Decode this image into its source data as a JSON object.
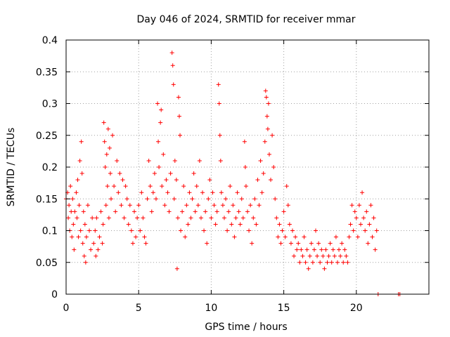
{
  "chart_data": {
    "type": "scatter",
    "title": "Day 046 of 2024, SRMTID for receiver mmar",
    "xlabel": "GPS time / hours",
    "ylabel": "SRMTID / TECUs",
    "xlim": [
      0,
      25
    ],
    "ylim": [
      0,
      0.4
    ],
    "xticks": [
      0,
      5,
      10,
      15,
      20
    ],
    "xtick_labels": [
      "0",
      "5",
      "10",
      "15",
      "20"
    ],
    "yticks": [
      0,
      0.05,
      0.1,
      0.15,
      0.2,
      0.25,
      0.3,
      0.35,
      0.4
    ],
    "ytick_labels": [
      "0",
      "0.05",
      "0.1",
      "0.15",
      "0.2",
      "0.25",
      "0.3",
      "0.35",
      "0.4"
    ],
    "grid": true,
    "marker": "plus",
    "color": "#ff0000",
    "series": [
      {
        "name": "SRMTID",
        "points": [
          [
            0.0,
            0.15
          ],
          [
            0.1,
            0.16
          ],
          [
            0.15,
            0.12
          ],
          [
            0.2,
            0.14
          ],
          [
            0.25,
            0.1
          ],
          [
            0.3,
            0.17
          ],
          [
            0.35,
            0.13
          ],
          [
            0.4,
            0.09
          ],
          [
            0.45,
            0.15
          ],
          [
            0.5,
            0.11
          ],
          [
            0.55,
            0.07
          ],
          [
            0.6,
            0.13
          ],
          [
            0.7,
            0.16
          ],
          [
            0.75,
            0.12
          ],
          [
            0.8,
            0.18
          ],
          [
            0.85,
            0.09
          ],
          [
            0.9,
            0.14
          ],
          [
            0.95,
            0.21
          ],
          [
            1.0,
            0.1
          ],
          [
            1.05,
            0.24
          ],
          [
            1.1,
            0.19
          ],
          [
            1.15,
            0.08
          ],
          [
            1.2,
            0.13
          ],
          [
            1.25,
            0.06
          ],
          [
            1.3,
            0.11
          ],
          [
            1.35,
            0.05
          ],
          [
            1.4,
            0.09
          ],
          [
            1.5,
            0.14
          ],
          [
            1.6,
            0.1
          ],
          [
            1.7,
            0.07
          ],
          [
            1.8,
            0.12
          ],
          [
            1.9,
            0.08
          ],
          [
            2.0,
            0.1
          ],
          [
            2.05,
            0.06
          ],
          [
            2.1,
            0.12
          ],
          [
            2.2,
            0.07
          ],
          [
            2.3,
            0.09
          ],
          [
            2.4,
            0.13
          ],
          [
            2.5,
            0.08
          ],
          [
            2.55,
            0.11
          ],
          [
            2.6,
            0.27
          ],
          [
            2.65,
            0.24
          ],
          [
            2.7,
            0.2
          ],
          [
            2.75,
            0.14
          ],
          [
            2.8,
            0.22
          ],
          [
            2.85,
            0.17
          ],
          [
            2.9,
            0.26
          ],
          [
            2.95,
            0.12
          ],
          [
            3.0,
            0.23
          ],
          [
            3.05,
            0.19
          ],
          [
            3.1,
            0.15
          ],
          [
            3.2,
            0.25
          ],
          [
            3.3,
            0.17
          ],
          [
            3.4,
            0.13
          ],
          [
            3.5,
            0.21
          ],
          [
            3.6,
            0.16
          ],
          [
            3.7,
            0.19
          ],
          [
            3.8,
            0.14
          ],
          [
            3.9,
            0.18
          ],
          [
            4.0,
            0.12
          ],
          [
            4.1,
            0.17
          ],
          [
            4.2,
            0.15
          ],
          [
            4.3,
            0.11
          ],
          [
            4.4,
            0.14
          ],
          [
            4.5,
            0.1
          ],
          [
            4.6,
            0.08
          ],
          [
            4.7,
            0.13
          ],
          [
            4.8,
            0.09
          ],
          [
            4.9,
            0.12
          ],
          [
            5.0,
            0.14
          ],
          [
            5.1,
            0.1
          ],
          [
            5.2,
            0.16
          ],
          [
            5.3,
            0.12
          ],
          [
            5.4,
            0.09
          ],
          [
            5.5,
            0.08
          ],
          [
            5.6,
            0.15
          ],
          [
            5.7,
            0.21
          ],
          [
            5.8,
            0.17
          ],
          [
            5.9,
            0.13
          ],
          [
            6.0,
            0.16
          ],
          [
            6.1,
            0.19
          ],
          [
            6.2,
            0.15
          ],
          [
            6.3,
            0.3
          ],
          [
            6.35,
            0.24
          ],
          [
            6.4,
            0.2
          ],
          [
            6.5,
            0.27
          ],
          [
            6.55,
            0.29
          ],
          [
            6.6,
            0.17
          ],
          [
            6.7,
            0.22
          ],
          [
            6.8,
            0.14
          ],
          [
            6.9,
            0.18
          ],
          [
            7.0,
            0.16
          ],
          [
            7.1,
            0.13
          ],
          [
            7.2,
            0.19
          ],
          [
            7.3,
            0.38
          ],
          [
            7.35,
            0.36
          ],
          [
            7.4,
            0.33
          ],
          [
            7.45,
            0.15
          ],
          [
            7.5,
            0.21
          ],
          [
            7.6,
            0.18
          ],
          [
            7.65,
            0.04
          ],
          [
            7.7,
            0.12
          ],
          [
            7.75,
            0.31
          ],
          [
            7.8,
            0.28
          ],
          [
            7.85,
            0.25
          ],
          [
            7.9,
            0.1
          ],
          [
            8.0,
            0.13
          ],
          [
            8.1,
            0.17
          ],
          [
            8.2,
            0.09
          ],
          [
            8.3,
            0.14
          ],
          [
            8.4,
            0.11
          ],
          [
            8.5,
            0.16
          ],
          [
            8.6,
            0.12
          ],
          [
            8.7,
            0.15
          ],
          [
            8.8,
            0.19
          ],
          [
            8.9,
            0.13
          ],
          [
            9.0,
            0.17
          ],
          [
            9.1,
            0.14
          ],
          [
            9.2,
            0.21
          ],
          [
            9.3,
            0.12
          ],
          [
            9.4,
            0.16
          ],
          [
            9.5,
            0.1
          ],
          [
            9.6,
            0.13
          ],
          [
            9.7,
            0.08
          ],
          [
            9.8,
            0.15
          ],
          [
            9.9,
            0.18
          ],
          [
            10.0,
            0.12
          ],
          [
            10.1,
            0.16
          ],
          [
            10.2,
            0.14
          ],
          [
            10.3,
            0.11
          ],
          [
            10.4,
            0.13
          ],
          [
            10.5,
            0.33
          ],
          [
            10.55,
            0.3
          ],
          [
            10.6,
            0.25
          ],
          [
            10.65,
            0.21
          ],
          [
            10.7,
            0.16
          ],
          [
            10.8,
            0.14
          ],
          [
            10.9,
            0.12
          ],
          [
            11.0,
            0.15
          ],
          [
            11.1,
            0.1
          ],
          [
            11.2,
            0.13
          ],
          [
            11.3,
            0.17
          ],
          [
            11.4,
            0.11
          ],
          [
            11.5,
            0.14
          ],
          [
            11.6,
            0.09
          ],
          [
            11.7,
            0.12
          ],
          [
            11.8,
            0.16
          ],
          [
            11.9,
            0.13
          ],
          [
            12.0,
            0.11
          ],
          [
            12.1,
            0.15
          ],
          [
            12.2,
            0.12
          ],
          [
            12.3,
            0.24
          ],
          [
            12.35,
            0.2
          ],
          [
            12.4,
            0.17
          ],
          [
            12.5,
            0.13
          ],
          [
            12.6,
            0.1
          ],
          [
            12.7,
            0.14
          ],
          [
            12.8,
            0.08
          ],
          [
            12.9,
            0.12
          ],
          [
            13.0,
            0.15
          ],
          [
            13.1,
            0.11
          ],
          [
            13.2,
            0.18
          ],
          [
            13.3,
            0.14
          ],
          [
            13.4,
            0.21
          ],
          [
            13.5,
            0.16
          ],
          [
            13.6,
            0.19
          ],
          [
            13.7,
            0.24
          ],
          [
            13.75,
            0.32
          ],
          [
            13.8,
            0.31
          ],
          [
            13.85,
            0.28
          ],
          [
            13.9,
            0.26
          ],
          [
            13.95,
            0.3
          ],
          [
            14.0,
            0.22
          ],
          [
            14.1,
            0.18
          ],
          [
            14.2,
            0.25
          ],
          [
            14.3,
            0.2
          ],
          [
            14.4,
            0.15
          ],
          [
            14.5,
            0.12
          ],
          [
            14.6,
            0.09
          ],
          [
            14.7,
            0.11
          ],
          [
            14.8,
            0.08
          ],
          [
            14.9,
            0.1
          ],
          [
            15.0,
            0.13
          ],
          [
            15.1,
            0.09
          ],
          [
            15.2,
            0.17
          ],
          [
            15.3,
            0.14
          ],
          [
            15.4,
            0.11
          ],
          [
            15.5,
            0.08
          ],
          [
            15.6,
            0.1
          ],
          [
            15.7,
            0.06
          ],
          [
            15.8,
            0.09
          ],
          [
            15.9,
            0.07
          ],
          [
            16.0,
            0.08
          ],
          [
            16.1,
            0.05
          ],
          [
            16.2,
            0.07
          ],
          [
            16.3,
            0.06
          ],
          [
            16.4,
            0.09
          ],
          [
            16.5,
            0.05
          ],
          [
            16.6,
            0.07
          ],
          [
            16.7,
            0.04
          ],
          [
            16.8,
            0.06
          ],
          [
            16.9,
            0.08
          ],
          [
            17.0,
            0.05
          ],
          [
            17.1,
            0.07
          ],
          [
            17.2,
            0.1
          ],
          [
            17.3,
            0.06
          ],
          [
            17.4,
            0.08
          ],
          [
            17.5,
            0.05
          ],
          [
            17.6,
            0.07
          ],
          [
            17.7,
            0.06
          ],
          [
            17.8,
            0.04
          ],
          [
            17.9,
            0.07
          ],
          [
            18.0,
            0.05
          ],
          [
            18.1,
            0.06
          ],
          [
            18.2,
            0.08
          ],
          [
            18.3,
            0.05
          ],
          [
            18.4,
            0.07
          ],
          [
            18.5,
            0.06
          ],
          [
            18.6,
            0.09
          ],
          [
            18.7,
            0.05
          ],
          [
            18.8,
            0.07
          ],
          [
            18.9,
            0.06
          ],
          [
            19.0,
            0.08
          ],
          [
            19.1,
            0.05
          ],
          [
            19.2,
            0.07
          ],
          [
            19.3,
            0.06
          ],
          [
            19.4,
            0.05
          ],
          [
            19.5,
            0.09
          ],
          [
            19.6,
            0.11
          ],
          [
            19.7,
            0.14
          ],
          [
            19.8,
            0.1
          ],
          [
            19.9,
            0.13
          ],
          [
            20.0,
            0.12
          ],
          [
            20.1,
            0.09
          ],
          [
            20.2,
            0.14
          ],
          [
            20.3,
            0.11
          ],
          [
            20.4,
            0.16
          ],
          [
            20.5,
            0.12
          ],
          [
            20.6,
            0.1
          ],
          [
            20.7,
            0.13
          ],
          [
            20.8,
            0.08
          ],
          [
            20.9,
            0.11
          ],
          [
            21.0,
            0.14
          ],
          [
            21.1,
            0.09
          ],
          [
            21.2,
            0.12
          ],
          [
            21.3,
            0.07
          ],
          [
            21.4,
            0.1
          ],
          [
            21.5,
            0.0
          ],
          [
            22.9,
            0.0
          ],
          [
            23.0,
            0.0
          ]
        ]
      }
    ]
  }
}
